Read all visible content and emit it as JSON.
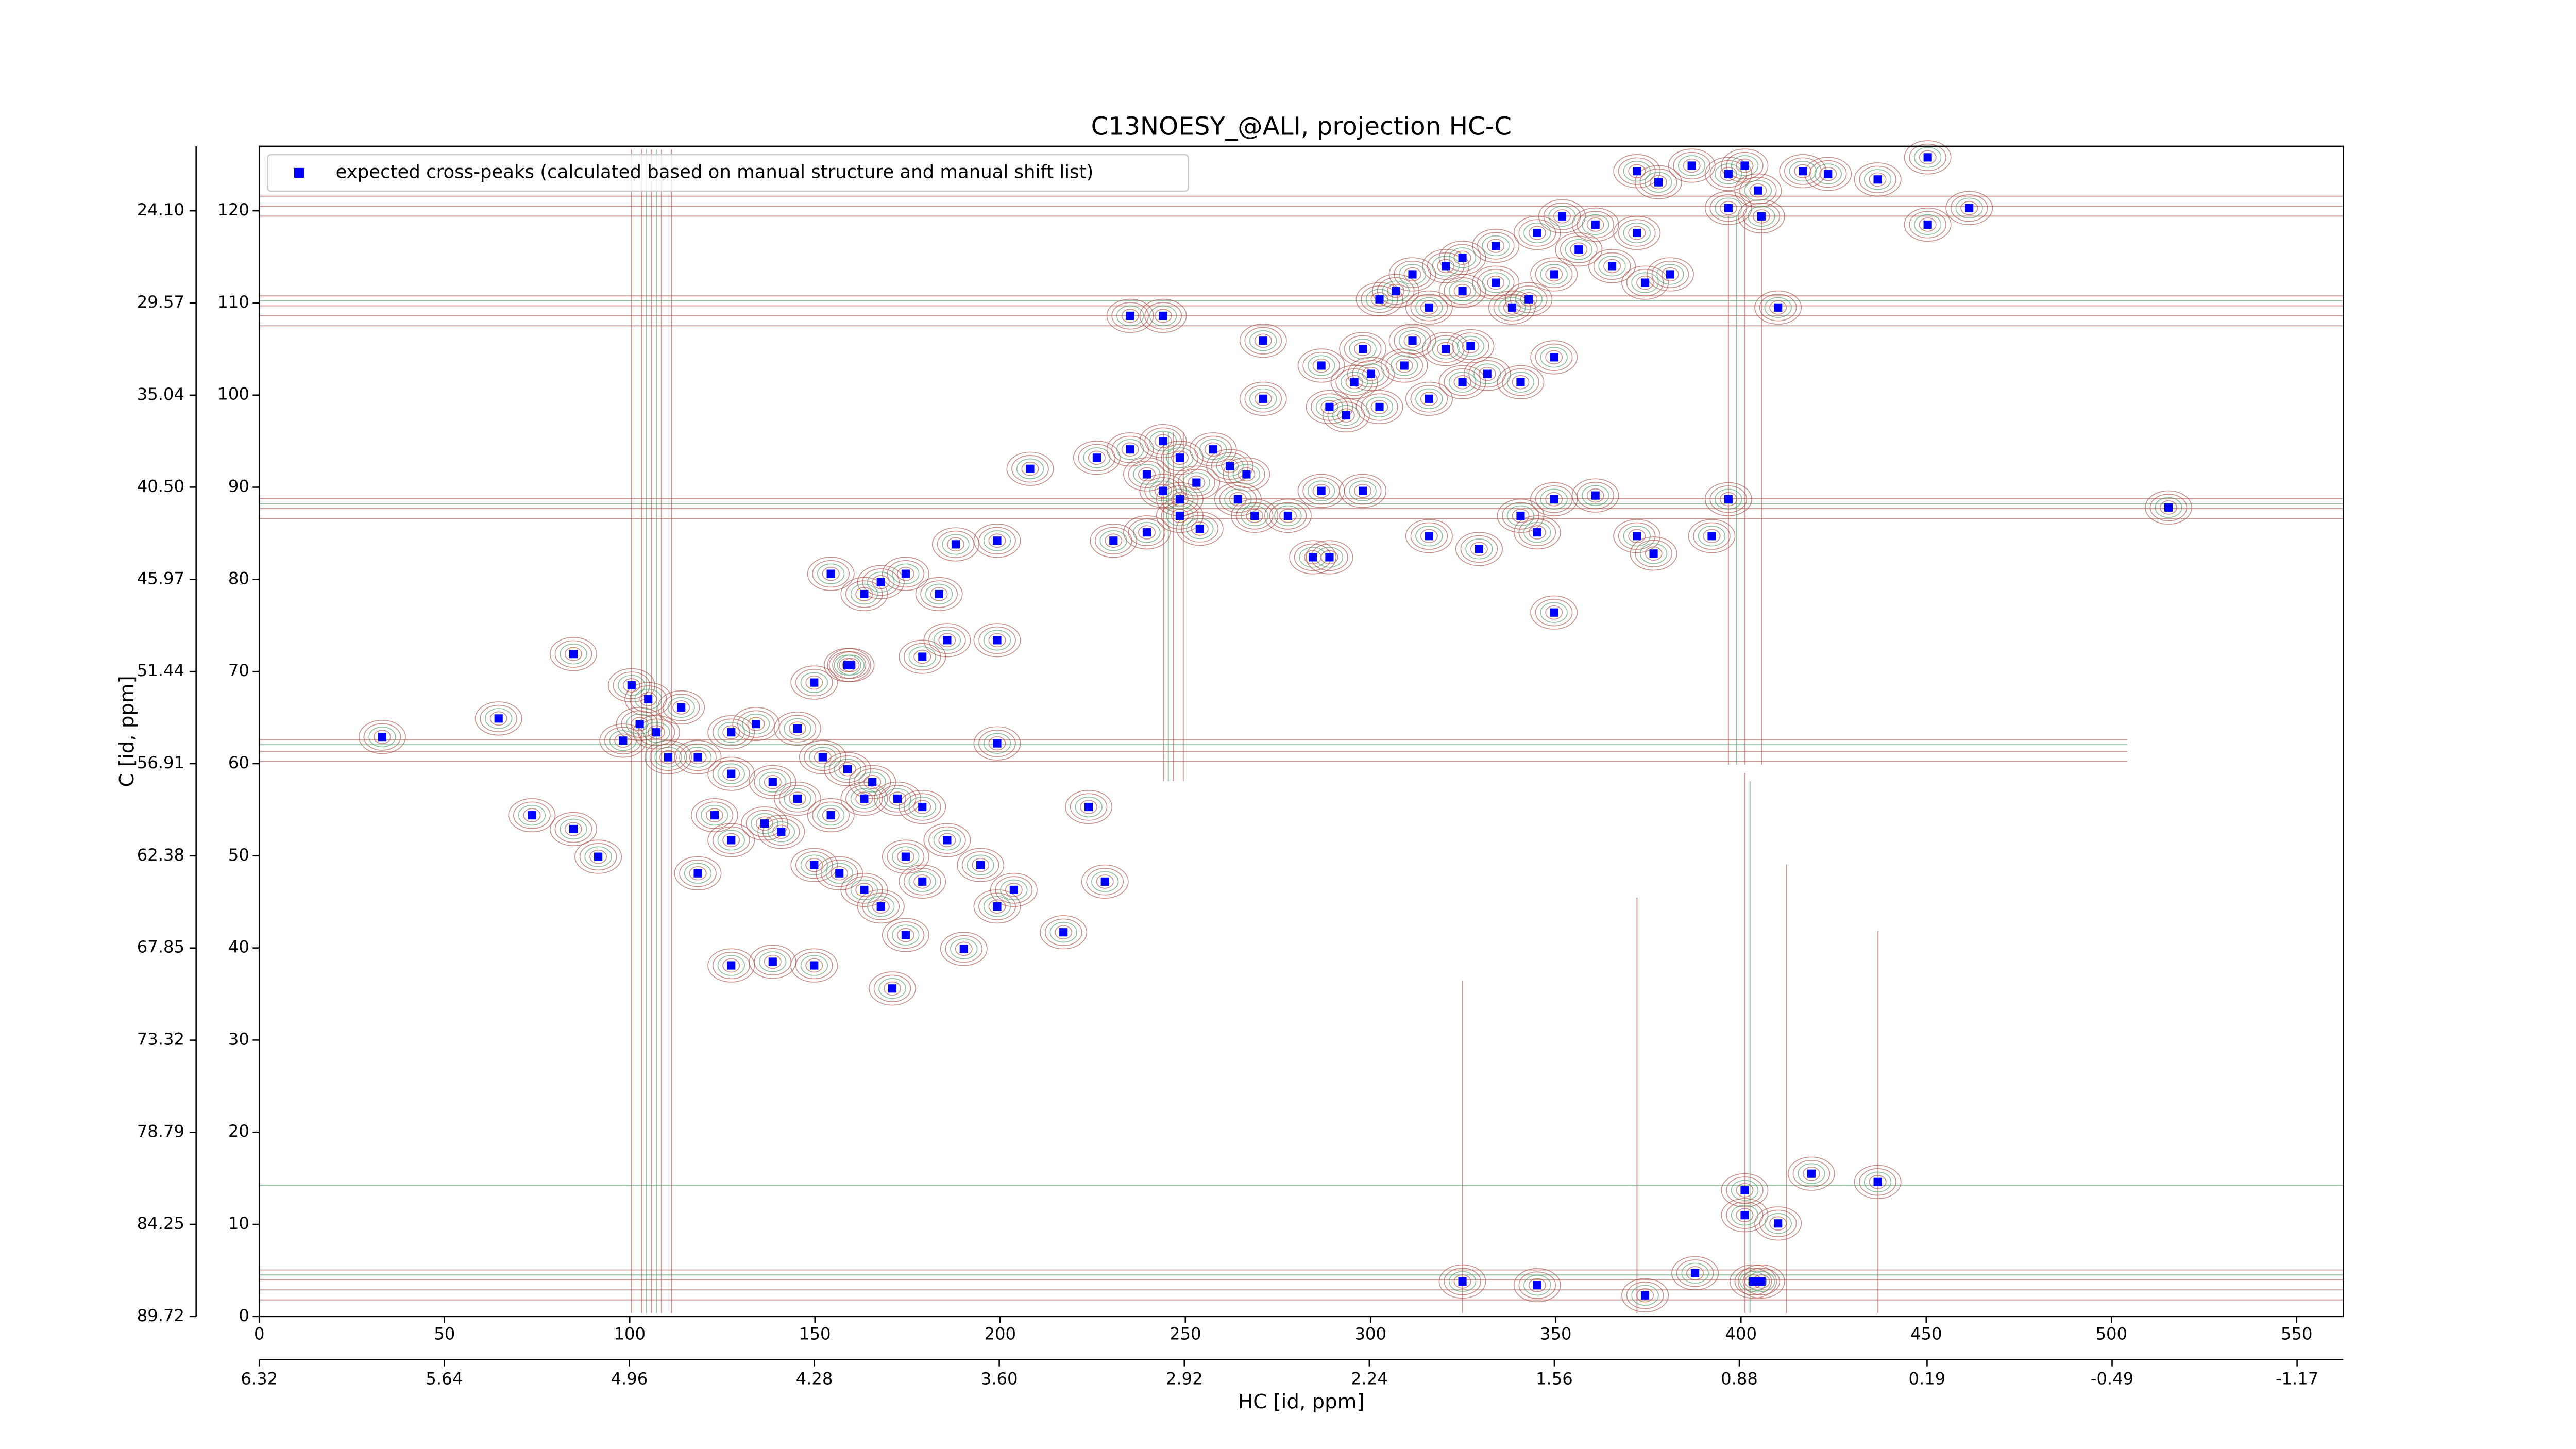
{
  "chart_data": {
    "type": "scatter",
    "title": "C13NOESY_@ALI, projection HC-C",
    "xlabel": "HC [id, ppm]",
    "ylabel": "C [id, ppm]",
    "legend": "upper left",
    "grid": false,
    "xlim": [
      0,
      562.6
    ],
    "xticks": [
      0,
      50,
      100,
      150,
      200,
      250,
      300,
      350,
      400,
      450,
      500,
      550
    ],
    "x2lim": [
      6.32,
      -1.34
    ],
    "x2ticks": [
      6.32,
      5.64,
      4.96,
      4.28,
      {
        "value": 3.6,
        "label": "3.60"
      },
      2.92,
      2.24,
      1.56,
      0.88,
      0.19,
      -0.49,
      -1.17
    ],
    "ylim": [
      0,
      127
    ],
    "yticks": [
      0,
      10,
      20,
      30,
      40,
      50,
      60,
      70,
      80,
      90,
      100,
      110,
      120
    ],
    "y2lim": [
      89.72,
      20.27
    ],
    "y2ticks": [
      89.72,
      84.25,
      78.79,
      73.32,
      67.85,
      62.38,
      56.91,
      51.44,
      45.97,
      {
        "value": 40.5,
        "label": "40.50"
      },
      35.04,
      29.57,
      {
        "value": 24.1,
        "label": "24.10"
      }
    ],
    "series": [
      {
        "name": "expected cross-peaks (calculated based on manual structure and manual shift list)",
        "color": "#0000ff",
        "x": [
          371.9,
          377.7,
          386.7,
          396.6,
          401.0,
          404.6,
          416.7,
          423.5,
          436.9,
          450.4,
          396.6,
          405.5,
          351.7,
          360.7,
          345.0,
          333.8,
          324.8,
          320.3,
          311.3,
          306.8,
          302.4,
          315.8,
          324.8,
          333.8,
          342.7,
          349.5,
          356.2,
          365.2,
          374.1,
          380.9,
          371.9,
          410.0,
          450.4,
          461.6,
          338.2,
          311.3,
          320.3,
          327.0,
          297.9,
          300.1,
          309.1,
          315.8,
          324.8,
          331.5,
          340.5,
          349.5,
          288.9,
          293.4,
          302.4,
          295.6,
          271.0,
          271.0,
          286.7,
          235.1,
          244.0,
          226.1,
          235.1,
          244.0,
          248.5,
          239.6,
          244.0,
          248.5,
          253.0,
          262.0,
          257.5,
          266.5,
          268.7,
          239.6,
          230.6,
          248.5,
          253.9,
          264.2,
          277.7,
          284.4,
          288.9,
          286.7,
          297.9,
          315.8,
          329.3,
          340.5,
          349.5,
          345.0,
          360.7,
          371.9,
          376.4,
          392.1,
          396.6,
          515.4,
          349.5,
          208.1,
          199.2,
          188.0,
          174.5,
          167.8,
          154.3,
          163.3,
          183.5,
          84.8,
          100.5,
          105.0,
          102.7,
          98.2,
          64.6,
          33.2,
          73.6,
          84.8,
          91.5,
          113.9,
          127.4,
          134.1,
          145.3,
          149.8,
          158.8,
          118.4,
          127.4,
          138.6,
          145.3,
          152.1,
          158.8,
          165.5,
          172.3,
          179.0,
          163.3,
          154.3,
          136.4,
          122.9,
          127.4,
          140.9,
          149.8,
          156.6,
          163.3,
          167.8,
          174.5,
          179.0,
          185.7,
          194.7,
          199.2,
          203.7,
          217.1,
          223.9,
          228.3,
          190.2,
          185.7,
          199.2,
          179.0,
          159.7,
          199.2,
          127.4,
          138.6,
          149.8,
          170.9,
          174.5,
          110.4,
          118.4,
          107.2,
          324.8,
          345.0,
          374.1,
          387.6,
          403.3,
          405.5,
          401.0,
          401.0,
          410.0,
          419.0,
          436.9
        ],
        "y": [
          124.3,
          123.1,
          124.9,
          124.0,
          124.9,
          122.2,
          124.3,
          124.0,
          123.4,
          125.8,
          120.3,
          119.4,
          119.4,
          118.5,
          117.6,
          116.2,
          114.9,
          114.0,
          113.1,
          111.3,
          110.4,
          109.5,
          111.3,
          112.2,
          110.4,
          113.1,
          115.8,
          114.0,
          112.2,
          113.1,
          117.6,
          109.5,
          118.5,
          120.3,
          109.5,
          105.9,
          105.0,
          105.3,
          105.0,
          102.3,
          103.2,
          99.6,
          101.4,
          102.3,
          101.4,
          104.1,
          98.7,
          97.8,
          98.7,
          101.4,
          99.6,
          105.9,
          103.2,
          108.6,
          108.6,
          93.2,
          94.1,
          95.0,
          93.2,
          91.4,
          89.6,
          88.7,
          90.5,
          92.3,
          94.1,
          91.4,
          86.9,
          85.1,
          84.2,
          86.9,
          85.5,
          88.7,
          86.9,
          82.4,
          82.4,
          89.6,
          89.6,
          84.7,
          83.3,
          86.9,
          88.7,
          85.1,
          89.1,
          84.7,
          82.8,
          84.7,
          88.7,
          87.8,
          76.4,
          92.0,
          84.2,
          83.8,
          80.6,
          79.7,
          80.6,
          78.4,
          78.4,
          71.9,
          68.5,
          67.0,
          64.3,
          62.5,
          64.9,
          62.9,
          54.4,
          52.9,
          49.9,
          66.1,
          63.4,
          64.3,
          63.8,
          68.8,
          70.7,
          60.7,
          58.9,
          58.0,
          56.2,
          60.7,
          59.4,
          58.0,
          56.2,
          55.3,
          56.2,
          54.4,
          53.5,
          54.4,
          51.7,
          52.6,
          49.0,
          48.1,
          46.3,
          44.5,
          49.9,
          47.2,
          51.7,
          49.0,
          44.5,
          46.3,
          41.7,
          55.3,
          47.2,
          39.9,
          73.4,
          73.4,
          71.6,
          70.7,
          62.2,
          38.1,
          38.5,
          38.1,
          35.6,
          41.4,
          60.7,
          48.1,
          63.4,
          3.8,
          3.4,
          2.3,
          4.7,
          3.8,
          3.8,
          13.7,
          11.0,
          10.1,
          15.5,
          14.6
        ]
      }
    ]
  }
}
